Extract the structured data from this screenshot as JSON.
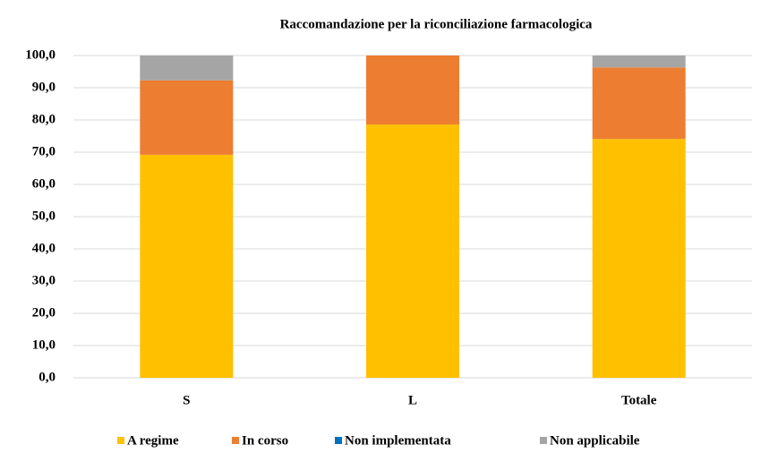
{
  "chart_data": {
    "type": "bar",
    "stacked": true,
    "title": "Raccomandazione per la riconciliazione farmacologica",
    "categories": [
      "S",
      "L",
      "Totale"
    ],
    "series": [
      {
        "name": "A regime",
        "color": "#FFC000",
        "values": [
          69.2,
          78.6,
          74.1
        ]
      },
      {
        "name": "In corso",
        "color": "#ED7D31",
        "values": [
          23.1,
          21.4,
          22.2
        ]
      },
      {
        "name": "Non implementata",
        "color": "#0070C0",
        "values": [
          0,
          0,
          0
        ]
      },
      {
        "name": "Non applicabile",
        "color": "#A5A5A5",
        "values": [
          7.7,
          0,
          3.7
        ]
      }
    ],
    "ylim": [
      0,
      100
    ],
    "yticks": [
      {
        "value": 0,
        "label": "0,0"
      },
      {
        "value": 10,
        "label": "10,0"
      },
      {
        "value": 20,
        "label": "20,0"
      },
      {
        "value": 30,
        "label": "30,0"
      },
      {
        "value": 40,
        "label": "40,0"
      },
      {
        "value": 50,
        "label": "50,0"
      },
      {
        "value": 60,
        "label": "60,0"
      },
      {
        "value": 70,
        "label": "70,0"
      },
      {
        "value": 80,
        "label": "80,0"
      },
      {
        "value": 90,
        "label": "90,0"
      },
      {
        "value": 100,
        "label": "100,0"
      }
    ],
    "grid": true,
    "legend": "bottom"
  }
}
